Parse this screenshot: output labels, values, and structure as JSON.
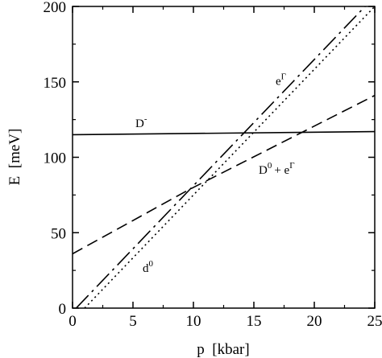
{
  "chart_data": {
    "type": "line",
    "xlabel": "p  [kbar]",
    "ylabel": "E  [meV]",
    "xlim": [
      0,
      25
    ],
    "ylim": [
      0,
      200
    ],
    "x_ticks": [
      "0",
      "5",
      "10",
      "15",
      "20",
      "25"
    ],
    "y_ticks": [
      "0",
      "50",
      "100",
      "150",
      "200"
    ],
    "grid": false,
    "legend": "none",
    "series": [
      {
        "style": "solid",
        "x": [
          0,
          25
        ],
        "y": [
          115,
          117
        ]
      },
      {
        "style": "dashed",
        "x": [
          0,
          9.5,
          25
        ],
        "y": [
          36,
          78,
          141
        ]
      },
      {
        "style": "dash-dot",
        "x": [
          0.3,
          24.2
        ],
        "y": [
          0,
          200
        ]
      },
      {
        "style": "dotted",
        "x": [
          1,
          25
        ],
        "y": [
          0,
          200
        ]
      }
    ],
    "annotations": [
      {
        "base": "D",
        "sup": "-",
        "x": 5.2,
        "y": 120
      },
      {
        "base": "e",
        "sup": "Γ",
        "x": 16.8,
        "y": 148
      },
      {
        "base": "D",
        "sup": "0",
        "tail": "+ e",
        "sup2": "Γ",
        "x": 15.4,
        "y": 89
      },
      {
        "base": "d",
        "sup": "0",
        "x": 5.8,
        "y": 24
      }
    ]
  }
}
